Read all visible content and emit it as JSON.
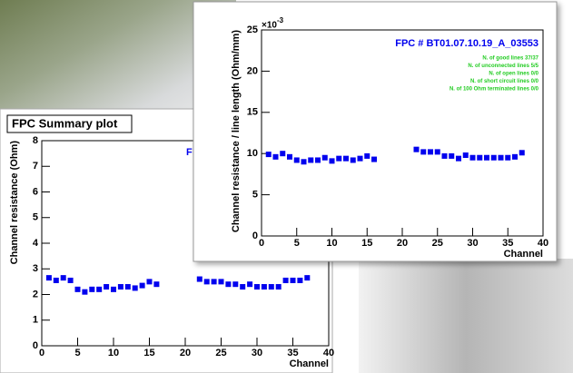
{
  "chart_data": [
    {
      "type": "scatter",
      "title": "FPC Summary plot",
      "annotation": "FP",
      "xlabel": "Channel",
      "ylabel": "Channel resistance (Ohm)",
      "x": [
        1,
        2,
        3,
        4,
        5,
        6,
        7,
        8,
        9,
        10,
        11,
        12,
        13,
        14,
        15,
        16,
        22,
        23,
        24,
        25,
        26,
        27,
        28,
        29,
        30,
        31,
        32,
        33,
        34,
        35,
        36,
        37
      ],
      "values": [
        2.65,
        2.55,
        2.65,
        2.55,
        2.2,
        2.1,
        2.2,
        2.2,
        2.3,
        2.2,
        2.3,
        2.3,
        2.25,
        2.35,
        2.5,
        2.4,
        2.6,
        2.5,
        2.5,
        2.5,
        2.4,
        2.4,
        2.3,
        2.4,
        2.3,
        2.3,
        2.3,
        2.3,
        2.55,
        2.55,
        2.55,
        2.65
      ],
      "color": "#0000ee",
      "xlim": [
        0,
        40
      ],
      "ylim": [
        0,
        8
      ],
      "xticks": [
        0,
        5,
        10,
        15,
        20,
        25,
        30,
        35,
        40
      ],
      "yticks": [
        0,
        1,
        2,
        3,
        4,
        5,
        6,
        7,
        8
      ]
    },
    {
      "type": "scatter",
      "title": "FPC # BT01.07.10.19_A_03553",
      "xlabel": "Channel",
      "ylabel": "Channel resistance / line length (Ohm/mm)",
      "y_scale_base": "×10",
      "y_scale_exponent": "-3",
      "annotations": [
        "N. of good lines 37/37",
        "N. of unconnected lines 5/5",
        "N. of open lines 0/0",
        "N. of short circuit lines 0/0",
        "N. of 100 Ohm terminated lines 0/0"
      ],
      "annotation_color": "#22cc22",
      "x": [
        1,
        2,
        3,
        4,
        5,
        6,
        7,
        8,
        9,
        10,
        11,
        12,
        13,
        14,
        15,
        16,
        22,
        23,
        24,
        25,
        26,
        27,
        28,
        29,
        30,
        31,
        32,
        33,
        34,
        35,
        36,
        37
      ],
      "values": [
        9.9,
        9.6,
        10.0,
        9.6,
        9.2,
        9.0,
        9.2,
        9.2,
        9.5,
        9.1,
        9.4,
        9.4,
        9.2,
        9.4,
        9.7,
        9.3,
        10.5,
        10.2,
        10.2,
        10.2,
        9.7,
        9.7,
        9.4,
        9.8,
        9.5,
        9.5,
        9.5,
        9.5,
        9.5,
        9.5,
        9.6,
        10.1
      ],
      "color": "#0000ee",
      "xlim": [
        0,
        40
      ],
      "ylim": [
        0,
        25
      ],
      "xticks": [
        0,
        5,
        10,
        15,
        20,
        25,
        30,
        35,
        40
      ],
      "yticks": [
        0,
        5,
        10,
        15,
        20,
        25
      ]
    }
  ]
}
